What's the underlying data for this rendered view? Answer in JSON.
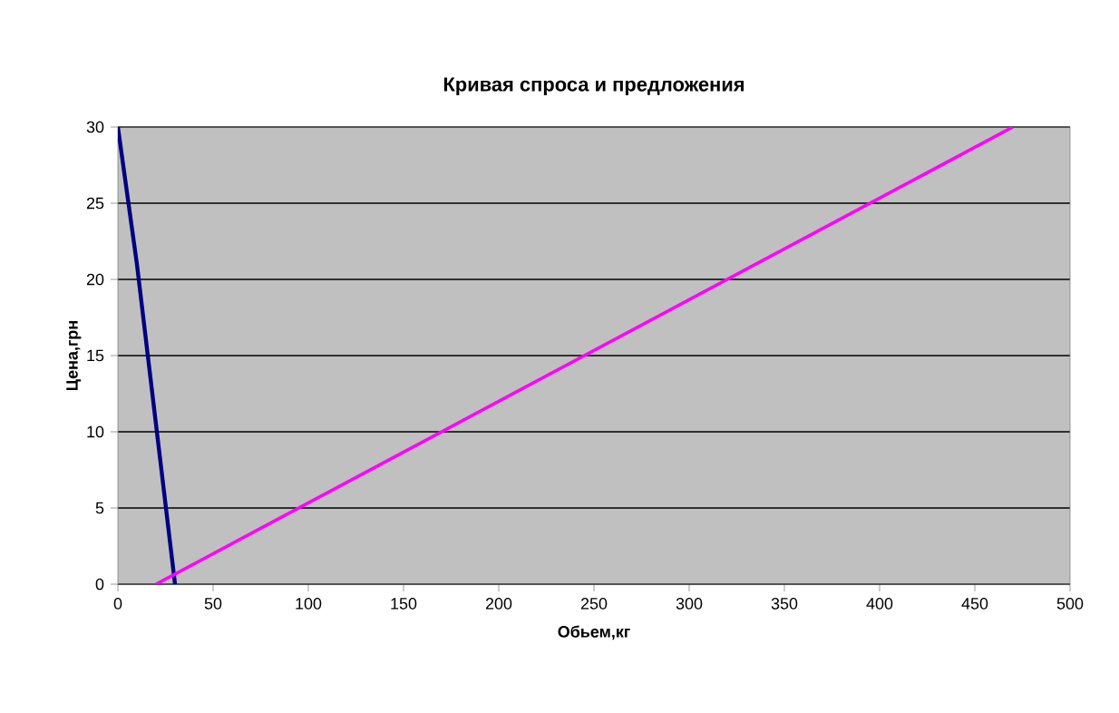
{
  "chart_data": {
    "type": "line",
    "title": "Кривая спроса и предложения",
    "xlabel": "Обьем,кг",
    "ylabel": "Цена,грн",
    "series": [
      {
        "color": "#000080",
        "x": [
          0,
          10,
          30
        ],
        "values": [
          30,
          21,
          0
        ]
      },
      {
        "color": "#ff00ff",
        "x": [
          20,
          320,
          470
        ],
        "values": [
          0,
          20,
          30
        ]
      }
    ],
    "xlim": [
      0,
      500
    ],
    "ylim": [
      0,
      30
    ],
    "xticks": [
      0,
      50,
      100,
      150,
      200,
      250,
      300,
      350,
      400,
      450,
      500
    ],
    "yticks": [
      0,
      5,
      10,
      15,
      20,
      25,
      30
    ],
    "grid": "y",
    "marker": "none",
    "line_style": "solid"
  }
}
